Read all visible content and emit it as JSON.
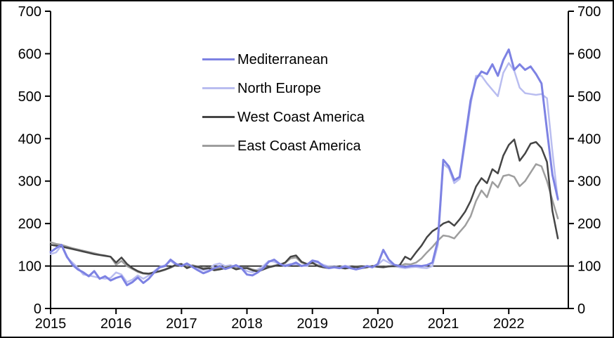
{
  "figure": {
    "background": "#ffffff",
    "border_color": "#000000",
    "text_color": "#000000"
  },
  "chart_data": {
    "type": "line",
    "title": "",
    "x_unit": "decimal_year",
    "x_start": 2015,
    "x_step_years": 0.0833333,
    "xlim": [
      2015,
      2022.91
    ],
    "ylim": [
      0,
      700
    ],
    "x_ticks": [
      2015,
      2016,
      2017,
      2018,
      2019,
      2020,
      2021,
      2022
    ],
    "y_ticks_left": [
      0,
      100,
      200,
      300,
      400,
      500,
      600,
      700
    ],
    "y_ticks_right": [
      0,
      100,
      200,
      300,
      400,
      500,
      600,
      700
    ],
    "baseline": 100,
    "grid": false,
    "dual_axis": true,
    "legend_position": "upper-left-inside",
    "series": [
      {
        "name": "Mediterranean",
        "color": "#7d82e3",
        "width": 3,
        "values": [
          133,
          142,
          150,
          122,
          103,
          92,
          85,
          76,
          88,
          70,
          76,
          66,
          72,
          76,
          55,
          62,
          73,
          60,
          70,
          85,
          97,
          100,
          115,
          105,
          100,
          106,
          98,
          90,
          83,
          88,
          95,
          100,
          93,
          97,
          102,
          95,
          80,
          78,
          85,
          95,
          110,
          115,
          105,
          100,
          103,
          108,
          100,
          103,
          113,
          110,
          100,
          95,
          97,
          95,
          99,
          95,
          92,
          95,
          100,
          97,
          105,
          138,
          115,
          103,
          100,
          98,
          100,
          101,
          100,
          102,
          108,
          160,
          350,
          335,
          302,
          310,
          400,
          490,
          540,
          558,
          552,
          575,
          548,
          585,
          610,
          562,
          575,
          562,
          570,
          552,
          530,
          420,
          315,
          258
        ]
      },
      {
        "name": "North Europe",
        "color": "#b9bdf0",
        "width": 2.5,
        "values": [
          128,
          132,
          148,
          120,
          108,
          96,
          80,
          78,
          75,
          72,
          70,
          72,
          85,
          80,
          62,
          68,
          78,
          70,
          78,
          88,
          98,
          102,
          112,
          103,
          102,
          104,
          100,
          95,
          90,
          93,
          103,
          106,
          100,
          102,
          98,
          96,
          88,
          85,
          92,
          100,
          112,
          110,
          104,
          102,
          105,
          104,
          101,
          100,
          110,
          108,
          103,
          99,
          100,
          97,
          101,
          98,
          95,
          97,
          99,
          100,
          103,
          115,
          108,
          100,
          97,
          95,
          97,
          98,
          96,
          95,
          100,
          150,
          340,
          330,
          295,
          305,
          390,
          480,
          548,
          548,
          530,
          515,
          500,
          555,
          578,
          560,
          520,
          507,
          505,
          503,
          505,
          495,
          370,
          255
        ]
      },
      {
        "name": "West Coast America",
        "color": "#454545",
        "width": 2.5,
        "values": [
          150,
          148,
          146,
          143,
          140,
          137,
          134,
          131,
          128,
          126,
          124,
          122,
          108,
          120,
          105,
          95,
          88,
          83,
          82,
          85,
          88,
          92,
          97,
          103,
          105,
          95,
          100,
          98,
          93,
          95,
          90,
          92,
          95,
          98,
          92,
          95,
          95,
          90,
          87,
          92,
          97,
          100,
          103,
          108,
          122,
          125,
          110,
          105,
          108,
          100,
          97,
          95,
          98,
          96,
          94,
          96,
          98,
          95,
          97,
          100,
          98,
          97,
          99,
          100,
          102,
          122,
          115,
          132,
          148,
          168,
          182,
          190,
          200,
          205,
          195,
          210,
          228,
          253,
          287,
          307,
          295,
          328,
          318,
          360,
          385,
          398,
          348,
          365,
          388,
          392,
          378,
          345,
          230,
          165
        ]
      },
      {
        "name": "East Coast America",
        "color": "#9e9e9e",
        "width": 2.5,
        "values": [
          156,
          152,
          150,
          146,
          142,
          139,
          136,
          133,
          130,
          127,
          125,
          122,
          103,
          112,
          100,
          93,
          86,
          82,
          81,
          84,
          87,
          91,
          96,
          102,
          104,
          98,
          102,
          99,
          95,
          97,
          93,
          95,
          97,
          100,
          95,
          97,
          97,
          92,
          89,
          94,
          98,
          101,
          104,
          107,
          118,
          120,
          108,
          104,
          106,
          102,
          99,
          97,
          99,
          97,
          95,
          97,
          99,
          97,
          98,
          100,
          99,
          98,
          100,
          99,
          100,
          105,
          104,
          108,
          118,
          132,
          145,
          160,
          172,
          170,
          165,
          180,
          195,
          217,
          253,
          278,
          262,
          298,
          285,
          312,
          315,
          310,
          288,
          300,
          320,
          340,
          335,
          300,
          255,
          212
        ]
      }
    ]
  }
}
